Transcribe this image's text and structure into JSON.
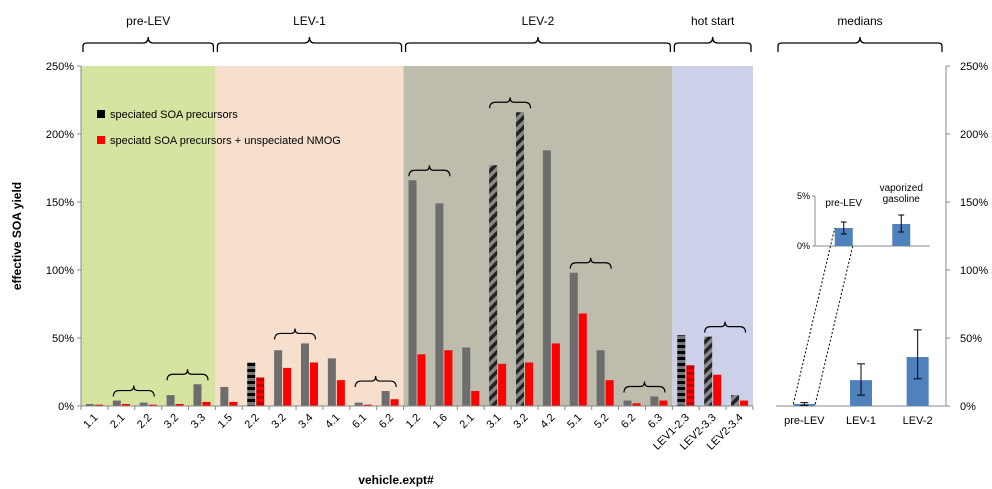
{
  "chart_data": [
    {
      "type": "bar",
      "xlabel": "vehicle.expt#",
      "ylabel": "effective SOA yield",
      "ylim": [
        0,
        2.5
      ],
      "yticks": [
        "0%",
        "50%",
        "100%",
        "150%",
        "200%",
        "250%"
      ],
      "grid": false,
      "legend_position": "top-left",
      "groups": [
        {
          "label": "pre-LEV",
          "color": "#d6e4a1"
        },
        {
          "label": "LEV-1",
          "color": "#f6dfcc"
        },
        {
          "label": "LEV-2",
          "color": "#bdbcad"
        },
        {
          "label": "hot start",
          "color": "#ccd0e8"
        }
      ],
      "legend": [
        {
          "label": "speciated SOA precursors",
          "color": "#000000"
        },
        {
          "label": "speciatd SOA precursors + unspeciated NMOG",
          "color": "#ff0000"
        }
      ],
      "categories": [
        "1.1",
        "2.1",
        "2.2",
        "3.2",
        "3.3",
        "1.5",
        "2.2",
        "3.2",
        "3.4",
        "4.1",
        "6.1",
        "6.2",
        "1.2",
        "1.6",
        "2.1",
        "3.1",
        "3.2",
        "4.2",
        "5.1",
        "5.2",
        "6.2",
        "6.3",
        "LEV1-2.3",
        "LEV2-3.3",
        "LEV2-3.4"
      ],
      "category_group": [
        0,
        0,
        0,
        0,
        0,
        1,
        1,
        1,
        1,
        1,
        1,
        1,
        2,
        2,
        2,
        2,
        2,
        2,
        2,
        2,
        2,
        2,
        3,
        3,
        3
      ],
      "gray_pattern": [
        "solid",
        "solid",
        "solid",
        "solid",
        "solid",
        "solid",
        "striped-h",
        "solid",
        "solid",
        "solid",
        "solid",
        "solid",
        "solid",
        "solid",
        "solid",
        "striped-d",
        "striped-d",
        "solid",
        "solid",
        "solid",
        "solid",
        "solid",
        "striped-h",
        "striped-d",
        "striped-d"
      ],
      "red_pattern": [
        "solid",
        "solid",
        "solid",
        "solid",
        "solid",
        "solid",
        "striped-h",
        "solid",
        "solid",
        "solid",
        "solid",
        "solid",
        "solid",
        "solid",
        "solid",
        "striped-d",
        "striped-d",
        "solid",
        "solid",
        "solid",
        "solid",
        "solid",
        "striped-h",
        "striped-d",
        "striped-d"
      ],
      "series": [
        {
          "name": "speciated SOA precursors",
          "values": [
            0.015,
            0.04,
            0.025,
            0.08,
            0.16,
            0.14,
            0.32,
            0.41,
            0.46,
            0.35,
            0.025,
            0.11,
            1.66,
            1.49,
            0.43,
            1.77,
            2.16,
            1.88,
            0.98,
            0.41,
            0.04,
            0.07,
            0.52,
            0.51,
            0.08
          ]
        },
        {
          "name": "speciatd SOA precursors + unspeciated NMOG",
          "values": [
            0.01,
            0.015,
            0.01,
            0.015,
            0.03,
            0.03,
            0.21,
            0.28,
            0.32,
            0.19,
            0.01,
            0.05,
            0.38,
            0.41,
            0.11,
            0.31,
            0.32,
            0.46,
            0.68,
            0.19,
            0.02,
            0.04,
            0.3,
            0.23,
            0.04
          ]
        }
      ],
      "brackets": [
        [
          1,
          2
        ],
        [
          3,
          4
        ],
        [
          7,
          8
        ],
        [
          10,
          11
        ],
        [
          12,
          13
        ],
        [
          15,
          16
        ],
        [
          18,
          19
        ],
        [
          20,
          21
        ],
        [
          23,
          24
        ]
      ]
    },
    {
      "type": "bar",
      "title": "medians",
      "ylim": [
        0,
        2.5
      ],
      "yticks": [
        "0%",
        "50%",
        "100%",
        "150%",
        "200%",
        "250%"
      ],
      "categories": [
        "pre-LEV",
        "LEV-1",
        "LEV-2"
      ],
      "values": [
        0.015,
        0.19,
        0.36
      ],
      "error_low": [
        0.005,
        0.08,
        0.2
      ],
      "error_high": [
        0.025,
        0.31,
        0.56
      ],
      "bar_color": "#4f81bd",
      "inset": {
        "categories": [
          "pre-LEV",
          "vaporized gasoline"
        ],
        "values": [
          0.018,
          0.022
        ],
        "error_low": [
          0.012,
          0.014
        ],
        "error_high": [
          0.024,
          0.031
        ],
        "ylim": [
          0,
          0.05
        ],
        "yticks": [
          "0%",
          "5%"
        ]
      }
    }
  ]
}
